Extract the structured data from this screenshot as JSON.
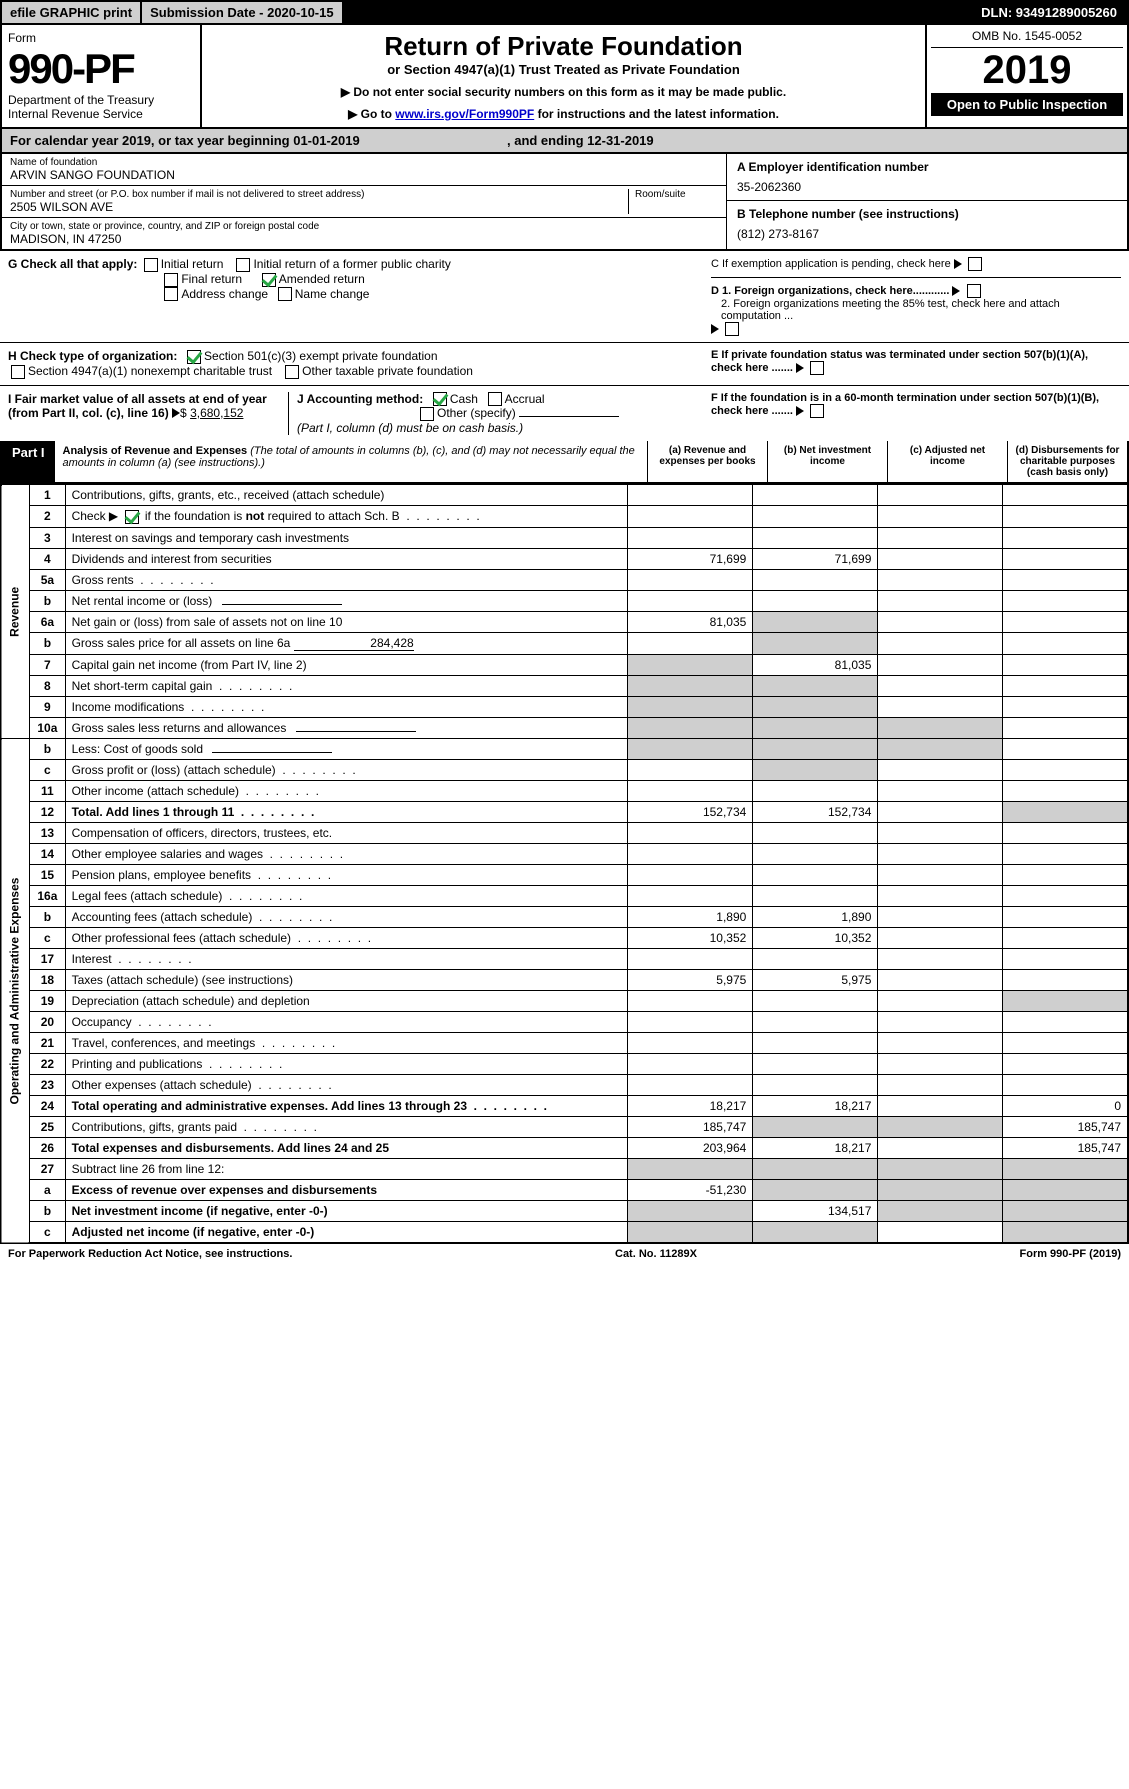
{
  "top": {
    "efile": "efile GRAPHIC print",
    "subdate_lbl": "Submission Date - 2020-10-15",
    "dln": "DLN: 93491289005260"
  },
  "hdr": {
    "form_word": "Form",
    "form_no": "990-PF",
    "dept": "Department of the Treasury\nInternal Revenue Service",
    "title": "Return of Private Foundation",
    "sub": "or Section 4947(a)(1) Trust Treated as Private Foundation",
    "note1": "▶ Do not enter social security numbers on this form as it may be made public.",
    "note2": "▶ Go to ",
    "link": "www.irs.gov/Form990PF",
    "note3": " for instructions and the latest information.",
    "omb": "OMB No. 1545-0052",
    "year": "2019",
    "inspection": "Open to Public Inspection"
  },
  "cal": {
    "txt": "For calendar year 2019, or tax year beginning 01-01-2019",
    "end": ", and ending 12-31-2019"
  },
  "id": {
    "name_lbl": "Name of foundation",
    "name": "ARVIN SANGO FOUNDATION",
    "addr_lbl": "Number and street (or P.O. box number if mail is not delivered to street address)",
    "room_lbl": "Room/suite",
    "addr": "2505 WILSON AVE",
    "city_lbl": "City or town, state or province, country, and ZIP or foreign postal code",
    "city": "MADISON, IN  47250",
    "A_lbl": "A Employer identification number",
    "A": "35-2062360",
    "B_lbl": "B Telephone number (see instructions)",
    "B": "(812) 273-8167",
    "C": "C If exemption application is pending, check here",
    "D1": "D 1. Foreign organizations, check here............",
    "D2": "2. Foreign organizations meeting the 85% test, check here and attach computation ...",
    "E": "E  If private foundation status was terminated under section 507(b)(1)(A), check here .......",
    "F": "F  If the foundation is in a 60-month termination under section 507(b)(1)(B), check here ......."
  },
  "G": {
    "lbl": "G Check all that apply:",
    "opts": [
      "Initial return",
      "Initial return of a former public charity",
      "Final return",
      "Amended return",
      "Address change",
      "Name change"
    ],
    "amended_checked": true
  },
  "H": {
    "lbl": "H Check type of organization:",
    "o1": "Section 501(c)(3) exempt private foundation",
    "o1_checked": true,
    "o2": "Section 4947(a)(1) nonexempt charitable trust",
    "o3": "Other taxable private foundation"
  },
  "I": {
    "lbl": "I Fair market value of all assets at end of year (from Part II, col. (c), line 16)",
    "val": "3,680,152"
  },
  "J": {
    "lbl": "J Accounting method:",
    "cash": "Cash",
    "accrual": "Accrual",
    "cash_checked": true,
    "other": "Other (specify)",
    "note": "(Part I, column (d) must be on cash basis.)"
  },
  "p1": {
    "tab": "Part I",
    "title": "Analysis of Revenue and Expenses",
    "note": "(The total of amounts in columns (b), (c), and (d) may not necessarily equal the amounts in column (a) (see instructions).)",
    "cols": {
      "a": "(a)   Revenue and expenses per books",
      "b": "(b)  Net investment income",
      "c": "(c)  Adjusted net income",
      "d": "(d)  Disbursements for charitable purposes (cash basis only)"
    }
  },
  "sections": {
    "rev": "Revenue",
    "exp": "Operating and Administrative Expenses"
  },
  "rows": [
    {
      "n": "1",
      "d": "Contributions, gifts, grants, etc., received (attach schedule)"
    },
    {
      "n": "2",
      "d": "Check ▶",
      "d2": " if the foundation is not required to attach Sch. B",
      "checked": true,
      "dots": true
    },
    {
      "n": "3",
      "d": "Interest on savings and temporary cash investments"
    },
    {
      "n": "4",
      "d": "Dividends and interest from securities",
      "a": "71,699",
      "b": "71,699"
    },
    {
      "n": "5a",
      "d": "Gross rents",
      "dots": true
    },
    {
      "n": "b",
      "d": "Net rental income or (loss)",
      "inline": true
    },
    {
      "n": "6a",
      "d": "Net gain or (loss) from sale of assets not on line 10",
      "a": "81,035",
      "b_shade": true
    },
    {
      "n": "b",
      "d": "Gross sales price for all assets on line 6a",
      "inline_val": "284,428",
      "b_shade": true
    },
    {
      "n": "7",
      "d": "Capital gain net income (from Part IV, line 2)",
      "a_shade": true,
      "b": "81,035"
    },
    {
      "n": "8",
      "d": "Net short-term capital gain",
      "dots": true,
      "a_shade": true,
      "b_shade": true
    },
    {
      "n": "9",
      "d": "Income modifications",
      "dots": true,
      "a_shade": true,
      "b_shade": true
    },
    {
      "n": "10a",
      "d": "Gross sales less returns and allowances",
      "inline": true,
      "a_shade": true,
      "b_shade": true,
      "c_shade": true
    },
    {
      "n": "b",
      "d": "Less: Cost of goods sold",
      "inline": true,
      "a_shade": true,
      "b_shade": true,
      "c_shade": true
    },
    {
      "n": "c",
      "d": "Gross profit or (loss) (attach schedule)",
      "dots": true,
      "b_shade": true
    },
    {
      "n": "11",
      "d": "Other income (attach schedule)",
      "dots": true
    },
    {
      "n": "12",
      "d": "Total. Add lines 1 through 11",
      "bold": true,
      "dots": true,
      "a": "152,734",
      "b": "152,734",
      "d_shade": true
    },
    {
      "n": "13",
      "d": "Compensation of officers, directors, trustees, etc."
    },
    {
      "n": "14",
      "d": "Other employee salaries and wages",
      "dots": true
    },
    {
      "n": "15",
      "d": "Pension plans, employee benefits",
      "dots": true
    },
    {
      "n": "16a",
      "d": "Legal fees (attach schedule)",
      "dots": true
    },
    {
      "n": "b",
      "d": "Accounting fees (attach schedule)",
      "dots": true,
      "a": "1,890",
      "b": "1,890"
    },
    {
      "n": "c",
      "d": "Other professional fees (attach schedule)",
      "dots": true,
      "a": "10,352",
      "b": "10,352"
    },
    {
      "n": "17",
      "d": "Interest",
      "dots": true
    },
    {
      "n": "18",
      "d": "Taxes (attach schedule) (see instructions)",
      "a": "5,975",
      "b": "5,975"
    },
    {
      "n": "19",
      "d": "Depreciation (attach schedule) and depletion",
      "d_shade": true
    },
    {
      "n": "20",
      "d": "Occupancy",
      "dots": true
    },
    {
      "n": "21",
      "d": "Travel, conferences, and meetings",
      "dots": true
    },
    {
      "n": "22",
      "d": "Printing and publications",
      "dots": true
    },
    {
      "n": "23",
      "d": "Other expenses (attach schedule)",
      "dots": true
    },
    {
      "n": "24",
      "d": "Total operating and administrative expenses. Add lines 13 through 23",
      "bold": true,
      "dots": true,
      "a": "18,217",
      "b": "18,217",
      "dv": "0"
    },
    {
      "n": "25",
      "d": "Contributions, gifts, grants paid",
      "dots": true,
      "a": "185,747",
      "b_shade": true,
      "c_shade": true,
      "dv": "185,747"
    },
    {
      "n": "26",
      "d": "Total expenses and disbursements. Add lines 24 and 25",
      "bold": true,
      "a": "203,964",
      "b": "18,217",
      "dv": "185,747"
    },
    {
      "n": "27",
      "d": "Subtract line 26 from line 12:",
      "a_shade": true,
      "b_shade": true,
      "c_shade": true,
      "d_shade": true
    },
    {
      "n": "a",
      "d": "Excess of revenue over expenses and disbursements",
      "bold": true,
      "a": "-51,230",
      "b_shade": true,
      "c_shade": true,
      "d_shade": true
    },
    {
      "n": "b",
      "d": "Net investment income (if negative, enter -0-)",
      "bold": true,
      "a_shade": true,
      "b": "134,517",
      "c_shade": true,
      "d_shade": true
    },
    {
      "n": "c",
      "d": "Adjusted net income (if negative, enter -0-)",
      "bold": true,
      "a_shade": true,
      "b_shade": true,
      "d_shade": true
    }
  ],
  "footer": {
    "l": "For Paperwork Reduction Act Notice, see instructions.",
    "c": "Cat. No. 11289X",
    "r": "Form 990-PF (2019)"
  }
}
